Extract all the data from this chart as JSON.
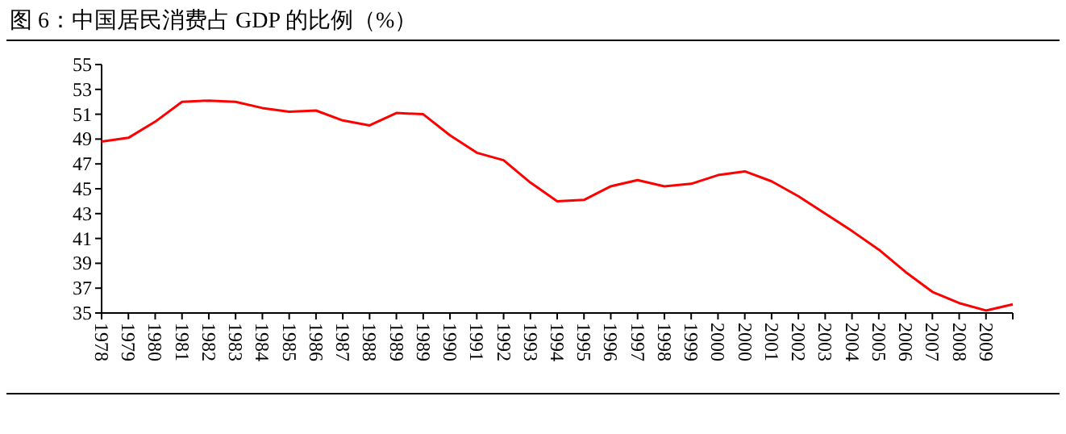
{
  "chart_data": {
    "type": "line",
    "title": "图 6：中国居民消费占 GDP 的比例（%）",
    "categories": [
      "1978",
      "1979",
      "1980",
      "1981",
      "1982",
      "1983",
      "1984",
      "1985",
      "1986",
      "1987",
      "1988",
      "1989",
      "1989",
      "1990",
      "1991",
      "1992",
      "1993",
      "1994",
      "1995",
      "1996",
      "1997",
      "1998",
      "1999",
      "2000",
      "2000",
      "2001",
      "2002",
      "2003",
      "2004",
      "2005",
      "2006",
      "2007",
      "2008",
      "2009",
      null
    ],
    "series": [
      {
        "color": "#ff0000",
        "values": [
          48.8,
          49.1,
          50.4,
          52.0,
          52.1,
          52.0,
          51.5,
          51.2,
          51.3,
          50.5,
          50.1,
          51.1,
          51.0,
          49.3,
          47.9,
          47.3,
          45.5,
          44.0,
          44.1,
          45.2,
          45.7,
          45.2,
          45.4,
          46.1,
          46.4,
          45.6,
          44.4,
          43.0,
          41.6,
          40.1,
          38.3,
          36.7,
          35.8,
          35.2,
          35.7
        ]
      }
    ],
    "ylim": [
      35,
      55
    ],
    "yticks": [
      35,
      37,
      39,
      41,
      43,
      45,
      47,
      49,
      51,
      53,
      55
    ],
    "grid": false
  }
}
